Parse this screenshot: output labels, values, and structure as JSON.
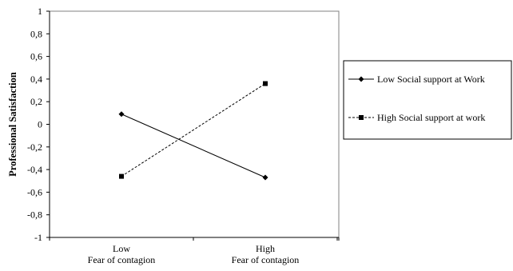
{
  "chart_data": {
    "type": "line",
    "title": "",
    "xlabel": "",
    "ylabel": "Professional Satisfaction",
    "ylim": [
      -1,
      1
    ],
    "yticks": [
      "1",
      "0,8",
      "0,6",
      "0,4",
      "0,2",
      "0",
      "-0,2",
      "-0,4",
      "-0,6",
      "-0,8",
      "-1"
    ],
    "categories": [
      [
        "Low",
        "Fear of contagion"
      ],
      [
        "High",
        "Fear of contagion"
      ]
    ],
    "grid": false,
    "legend_position": "right",
    "series": [
      {
        "name": "Low Social support at Work",
        "values": [
          0.09,
          -0.47
        ],
        "marker": "diamond",
        "line": "solid",
        "color": "#000000"
      },
      {
        "name": "High Social support at work",
        "values": [
          -0.46,
          0.36
        ],
        "marker": "square",
        "line": "dashed",
        "color": "#000000"
      }
    ]
  }
}
